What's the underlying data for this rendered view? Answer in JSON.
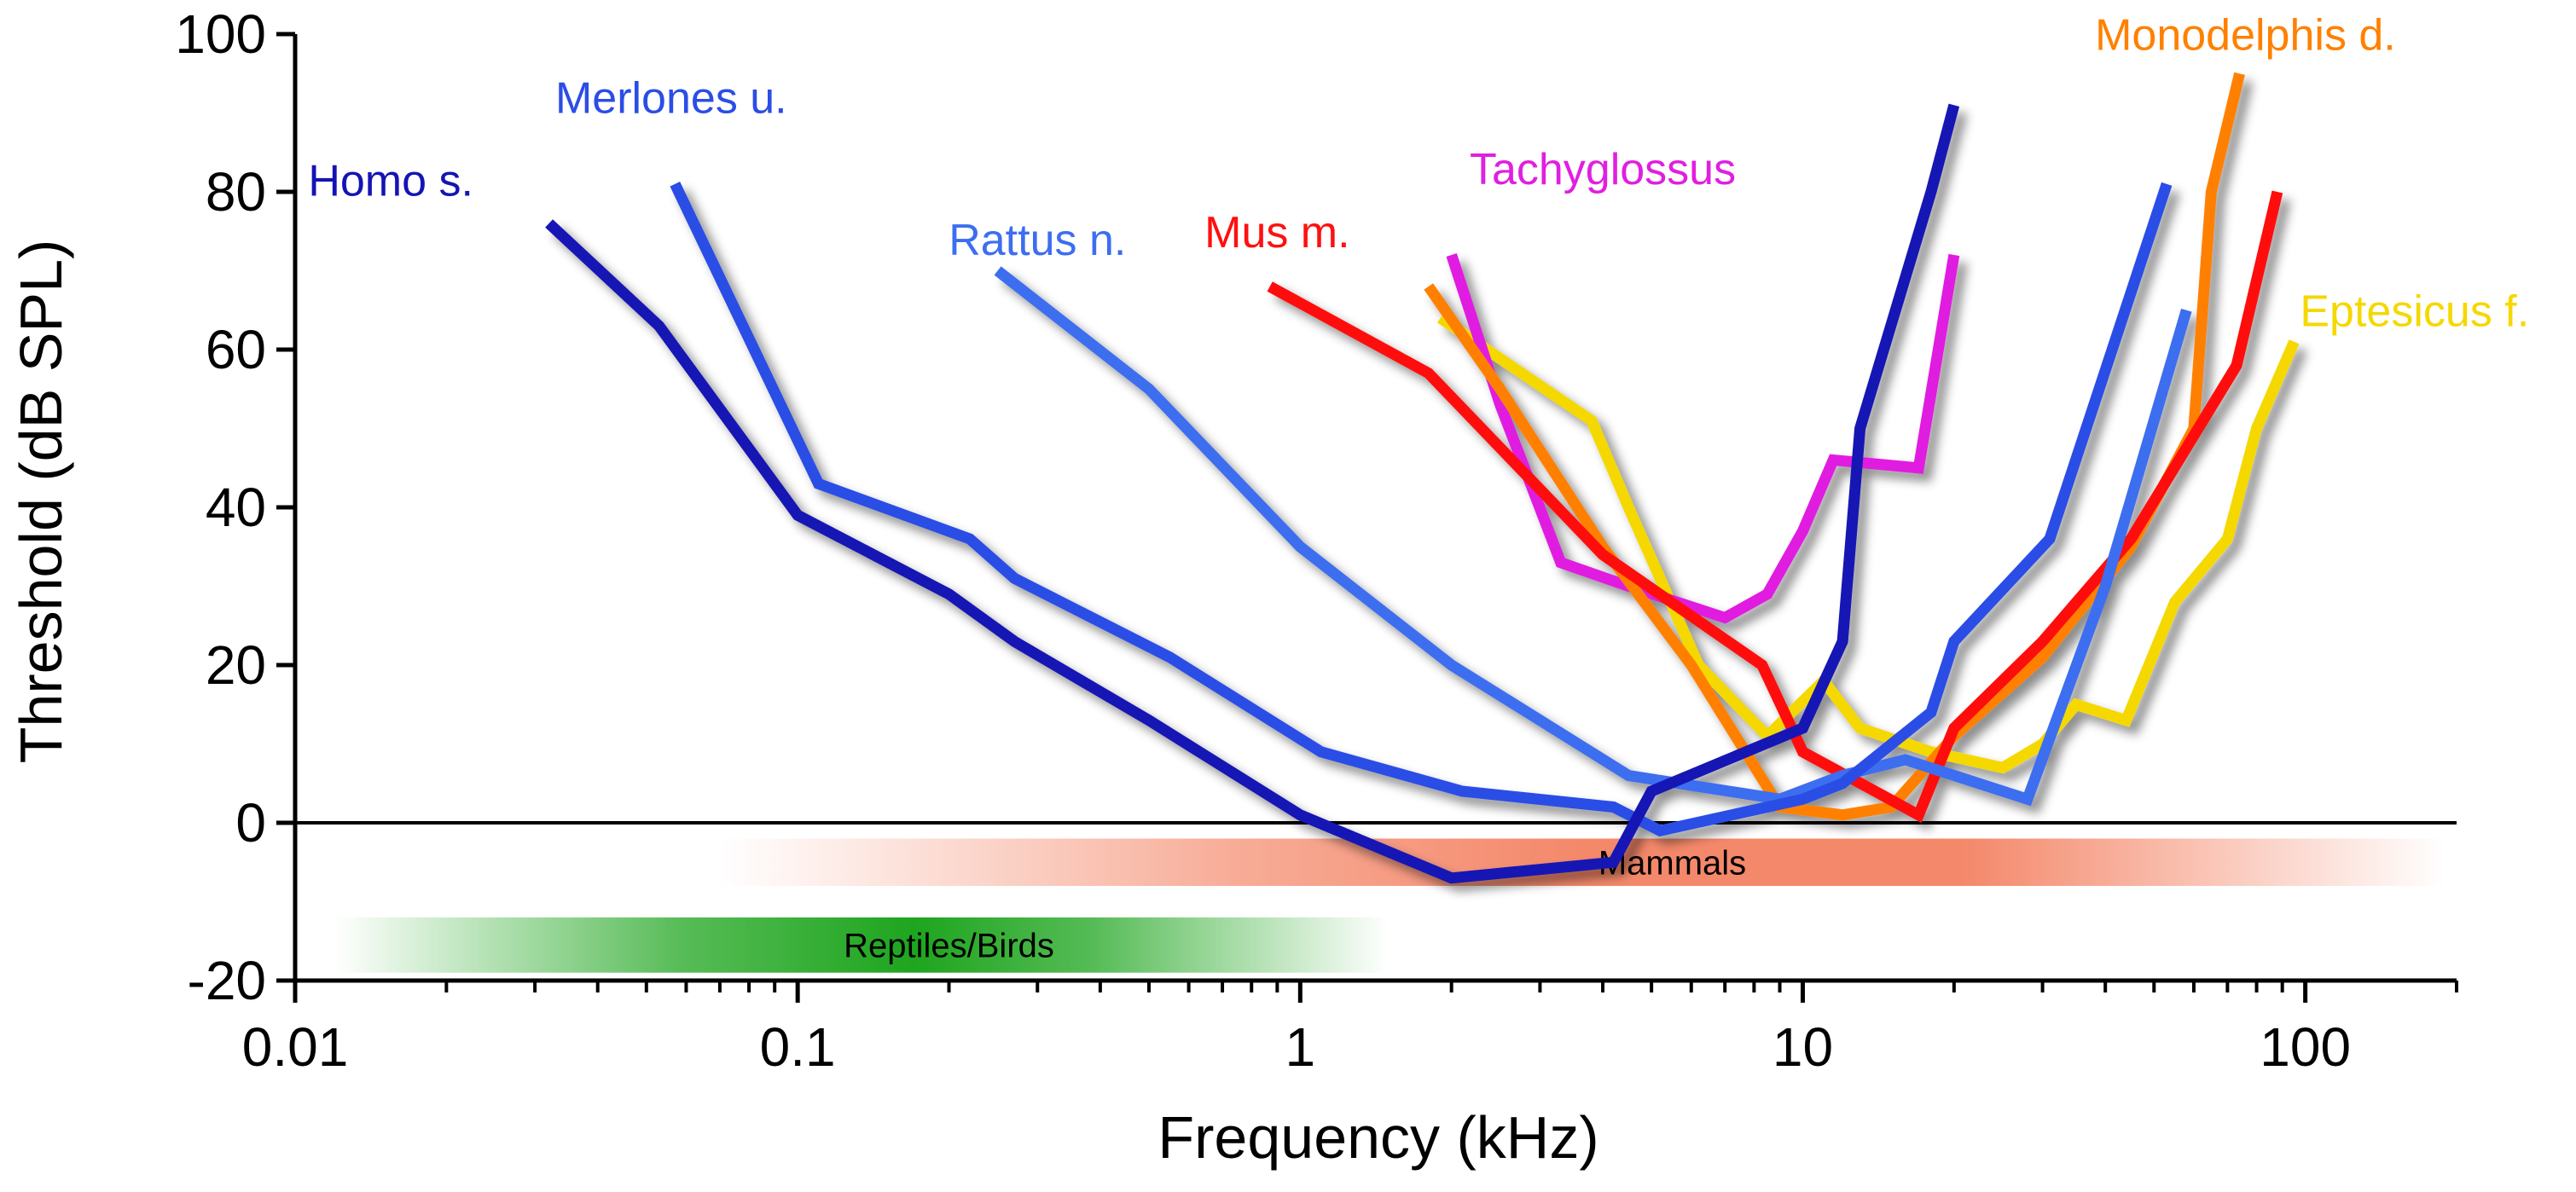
{
  "chart_data": {
    "type": "line",
    "title": "",
    "xlabel": "Frequency (kHz)",
    "ylabel": "Threshold (dB SPL)",
    "xscale": "log",
    "xlim": [
      0.01,
      200
    ],
    "ylim": [
      -20,
      100
    ],
    "x_ticks": [
      0.01,
      0.1,
      1,
      10,
      100
    ],
    "x_tick_labels": [
      "0.01",
      "0.1",
      "1",
      "10",
      "100"
    ],
    "y_ticks": [
      -20,
      0,
      20,
      40,
      60,
      80,
      100
    ],
    "y_tick_labels": [
      "-20",
      "0",
      "20",
      "40",
      "60",
      "80",
      "100"
    ],
    "reference_line_y": 0,
    "bands": [
      {
        "name": "Mammals",
        "x_start": 0.07,
        "x_end": 190,
        "y_top": -2,
        "y_bottom": -8,
        "color": "#f4886a"
      },
      {
        "name": "Reptiles/Birds",
        "x_start": 0.012,
        "x_end": 1.5,
        "y_top": -12,
        "y_bottom": -19,
        "color": "#1ea51e"
      }
    ],
    "series": [
      {
        "name": "Homo s.",
        "color": "#1414b4",
        "x": [
          0.032,
          0.053,
          0.1,
          0.2,
          0.27,
          0.5,
          1,
          2,
          4.2,
          5,
          10,
          12,
          13,
          18,
          20
        ],
        "y": [
          76,
          63,
          39,
          29,
          23,
          13,
          1,
          -7,
          -5,
          4,
          12,
          23,
          50,
          80,
          91
        ]
      },
      {
        "name": "Merlones u.",
        "color": "#2b4de6",
        "x": [
          0.057,
          0.11,
          0.22,
          0.27,
          0.55,
          1.1,
          2.1,
          4.2,
          5.2,
          10,
          12,
          18,
          20,
          31,
          53
        ],
        "y": [
          81,
          43,
          36,
          31,
          21,
          9,
          4,
          2,
          -1,
          3,
          5,
          14,
          23,
          36,
          81
        ]
      },
      {
        "name": "Rattus n.",
        "color": "#3c6ef0",
        "x": [
          0.25,
          0.5,
          1,
          2,
          4.5,
          9,
          12,
          16,
          28,
          40,
          58
        ],
        "y": [
          70,
          55,
          35,
          20,
          6,
          3,
          6,
          8,
          3,
          30,
          65
        ]
      },
      {
        "name": "Mus m.",
        "color": "#ff1010",
        "x": [
          0.87,
          1.8,
          4,
          8.3,
          10,
          17,
          20,
          30,
          45,
          73,
          88
        ],
        "y": [
          68,
          57,
          34,
          20,
          9,
          1,
          12,
          23,
          36,
          58,
          80
        ]
      },
      {
        "name": "Tachyglossus",
        "color": "#e01fe0",
        "x": [
          2,
          2.5,
          3.3,
          4.5,
          7,
          8.5,
          10,
          11.5,
          17,
          20
        ],
        "y": [
          72,
          53,
          33,
          30,
          26,
          29,
          37,
          46,
          45,
          72
        ]
      },
      {
        "name": "Monodelphis d.",
        "color": "#ff8000",
        "x": [
          1.8,
          2.5,
          4,
          6,
          9,
          12,
          15,
          20,
          30,
          45,
          60,
          65,
          74
        ],
        "y": [
          68,
          55,
          35,
          20,
          2,
          1,
          2,
          11,
          21,
          35,
          50,
          80,
          95
        ]
      },
      {
        "name": "Eptesicus f.",
        "color": "#f5d800",
        "x": [
          1.9,
          3.8,
          4.5,
          6.2,
          8.5,
          11,
          13,
          18,
          25,
          30,
          35,
          44,
          55,
          70,
          80,
          95
        ],
        "y": [
          64,
          51,
          40,
          20,
          11,
          18,
          12,
          9,
          7,
          10,
          15,
          13,
          28,
          36,
          50,
          61
        ]
      }
    ]
  }
}
